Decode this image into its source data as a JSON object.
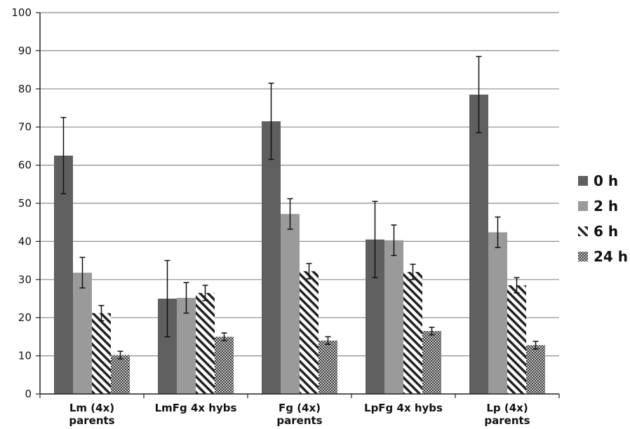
{
  "chart_data": {
    "type": "bar",
    "title": "",
    "xlabel": "",
    "ylabel": "",
    "ylim": [
      0,
      100
    ],
    "yticks": [
      0,
      10,
      20,
      30,
      40,
      50,
      60,
      70,
      80,
      90,
      100
    ],
    "grid": true,
    "legend_position": "right",
    "categories": [
      [
        "Lm (4x)",
        "parents"
      ],
      [
        "LmFg 4x hybs"
      ],
      [
        "Fg (4x)",
        "parents"
      ],
      [
        "LpFg 4x hybs"
      ],
      [
        "Lp (4x)",
        "parents"
      ]
    ],
    "series": [
      {
        "name": "0 h",
        "fill": "#5f5f5f",
        "pattern": "solid",
        "values": [
          62.5,
          25.0,
          71.5,
          40.5,
          78.5
        ],
        "errors": [
          10.0,
          10.0,
          10.0,
          10.0,
          10.0
        ]
      },
      {
        "name": "2 h",
        "fill": "#9a9a9a",
        "pattern": "solid",
        "values": [
          31.8,
          25.2,
          47.2,
          40.3,
          42.4
        ],
        "errors": [
          4.0,
          4.0,
          4.0,
          4.0,
          4.0
        ]
      },
      {
        "name": "6 h",
        "fill": "#222222",
        "pattern": "diagonal-stripes",
        "values": [
          21.2,
          26.5,
          32.2,
          32.0,
          28.5
        ],
        "errors": [
          2.0,
          2.0,
          2.0,
          2.0,
          2.0
        ]
      },
      {
        "name": "24 h",
        "fill": "#555555",
        "pattern": "dots",
        "values": [
          10.2,
          15.0,
          14.0,
          16.5,
          12.8
        ],
        "errors": [
          1.0,
          1.0,
          1.0,
          1.0,
          1.0
        ]
      }
    ]
  }
}
